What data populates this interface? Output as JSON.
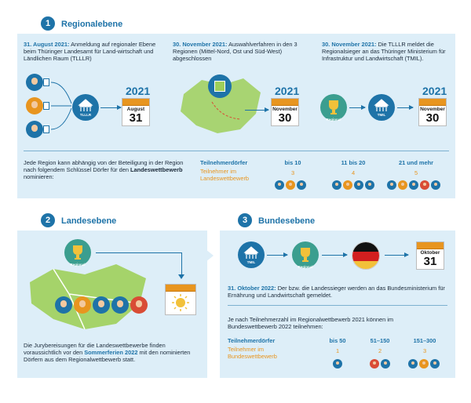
{
  "section1": {
    "number": "1",
    "title": "Regionalebene",
    "col1": {
      "date": "31. August 2021:",
      "text": "Anmeldung auf regionaler Ebene beim Thüringer Landesamt für Land-wirtschaft und Ländlichen Raum (TLLLR)",
      "year": "2021",
      "cal_month": "August",
      "cal_day": "31",
      "bldg_label": "TLLLR"
    },
    "col2": {
      "date": "30. November 2021:",
      "text": "Auswahlverfahren in den 3 Regionen (Mittel-Nord, Ost und Süd-West) abgeschlossen",
      "year": "2021",
      "cal_month": "November",
      "cal_day": "30"
    },
    "col3": {
      "date": "30. November 2021:",
      "text": "Die TLLLR meldet die Regionalsieger an das Thüringer Ministerium für Infrastruktur und Landwirtschaft (TMIL).",
      "year": "2021",
      "cal_month": "November",
      "cal_day": "30",
      "trophy_label": "Regional",
      "bldg_label": "TMIL"
    },
    "key_text_pre": "Jede Region kann abhängig von der Beteiligung in der Region nach folgendem Schlüssel Dörfer für den ",
    "key_text_bold": "Landeswettbewerb",
    "key_text_post": " nominieren:",
    "label_dorfer": "Teilnehmerdörfer",
    "label_teilnehmer": "Teilnehmer im Landeswettbewerb",
    "brackets": [
      "bis 10",
      "11 bis 20",
      "21 und mehr"
    ],
    "counts": [
      "3",
      "4",
      "5"
    ]
  },
  "section2": {
    "number": "2",
    "title": "Landesebene",
    "trophy_label": "Regional",
    "text_pre": "Die Jurybereisungen für die Landeswettbewerbe finden voraussichtlich vor den ",
    "text_hl": "Sommerferien 2022",
    "text_post": " mit den nominierten Dörfern aus dem Regionalwettbewerb statt."
  },
  "section3": {
    "number": "3",
    "title": "Bundesebene",
    "bldg_label": "TMIL",
    "trophy_label": "Regional",
    "cal_month": "Oktober",
    "cal_day": "31",
    "date": "31. Oktober 2022:",
    "text": "Der bzw. die Landessieger werden an das Bundesministerium für Ernährung und Landwirtschaft gemeldet.",
    "intro": "Je nach Teilnehmerzahl im Regionalwettbewerb 2021 können im Bundeswettbewerb 2022 teilnehmen:",
    "label_dorfer": "Teilnehmerdörfer",
    "label_teilnehmer": "Teilnehmer im Bundeswettbewerb",
    "brackets": [
      "bis 50",
      "51–150",
      "151–300"
    ],
    "counts": [
      "1",
      "2",
      "3"
    ]
  },
  "colors": {
    "primary": "#1e73a8",
    "accent": "#e8951f",
    "panel": "#ddeef8",
    "map": "#9fcf5a"
  }
}
